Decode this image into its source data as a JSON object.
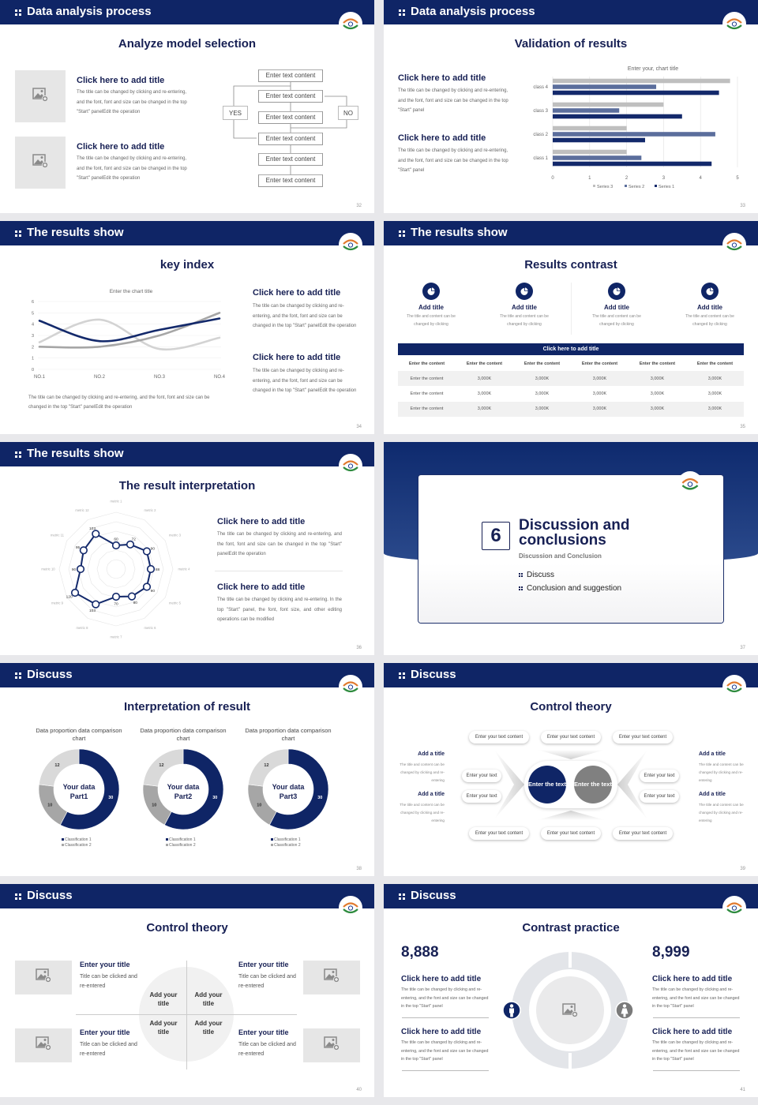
{
  "colors": {
    "navy": "#0f2566",
    "title": "#172054",
    "mid_gray": "#a6a6a6",
    "light_gray": "#d9d9d9"
  },
  "icons": {
    "image_placeholder": "image-add-icon",
    "logo": "emblem-logo",
    "feature": "pie-chart-icon",
    "male": "male-icon",
    "female": "female-icon"
  },
  "slides": [
    {
      "header": "Data analysis process",
      "subtitle": "Analyze model selection",
      "page": "32",
      "items": [
        {
          "title": "Click here to add title",
          "body": "The title can be changed by clicking and re-entering, and the font, font and size can be changed in the top \"Start\" panelEdit the operation"
        },
        {
          "title": "Click here to add title",
          "body": "The title can be changed by clicking and re-entering, and the font, font and size can be changed in the top \"Start\" panelEdit the operation"
        }
      ],
      "flow": {
        "boxes": [
          "Enter text content",
          "Enter text content",
          "Enter text content",
          "Enter text content",
          "Enter text content",
          "Enter text content"
        ],
        "yes": "YES",
        "no": "NO"
      }
    },
    {
      "header": "Data analysis process",
      "subtitle": "Validation of results",
      "page": "33",
      "items": [
        {
          "title": "Click here to add title",
          "body": "The title can be changed by clicking and re-entering, and the font, font and size can be changed in the top \"Start\" panel"
        },
        {
          "title": "Click here to add title",
          "body": "The title can be changed by clicking and re-entering, and the font, font and size can be changed in the top \"Start\" panel"
        }
      ]
    },
    {
      "header": "The results show",
      "subtitle": "key index",
      "page": "34",
      "caption": "The title can be changed by clicking and re-entering, and the font, font and size can be changed in the top \"Start\" panelEdit the operation",
      "items": [
        {
          "title": "Click here to add title",
          "body": "The title can be changed by clicking and re-entering, and the font, font and size can be changed in the top \"Start\" panelEdit the operation"
        },
        {
          "title": "Click here to add title",
          "body": "The title can be changed by clicking and re-entering, and the font, font and size can be changed in the top \"Start\" panelEdit the operation"
        }
      ]
    },
    {
      "header": "The results show",
      "subtitle": "Results contrast",
      "page": "35",
      "features": [
        {
          "title": "Add title",
          "body": "The title and content can be changed by clicking"
        },
        {
          "title": "Add title",
          "body": "The title and content can be changed by clicking"
        },
        {
          "title": "Add title",
          "body": "The title and content can be changed by clicking"
        },
        {
          "title": "Add title",
          "body": "The title and content can be changed by clicking"
        }
      ],
      "table": {
        "title": "Click here to add title",
        "header": [
          "Enter the content",
          "Enter the content",
          "Enter the content",
          "Enter the content",
          "Enter the content",
          "Enter the content"
        ],
        "rows": [
          [
            "Enter the content",
            "3,000K",
            "3,000K",
            "3,000K",
            "3,000K",
            "3,000K"
          ],
          [
            "Enter the content",
            "3,000K",
            "3,000K",
            "3,000K",
            "3,000K",
            "3,000K"
          ],
          [
            "Enter the content",
            "3,000K",
            "3,000K",
            "3,000K",
            "3,000K",
            "3,000K"
          ]
        ]
      }
    },
    {
      "header": "The results show",
      "subtitle": "The result interpretation",
      "page": "36",
      "items": [
        {
          "title": "Click here to add title",
          "body": "The title can be changed by clicking and re-entering, and the font, font and size can be changed in the top \"Start\" panelEdit the operation"
        },
        {
          "title": "Click here to add title",
          "body": "The title can be changed by clicking and re-entering. In the top \"Start\" panel, the font, font size, and other editing operations can be modified"
        }
      ]
    },
    {
      "number": "6",
      "title": "Discussion and conclusions",
      "subtitle": "Discussion and Conclusion",
      "bullets": [
        "Discuss",
        "Conclusion and suggestion"
      ],
      "page": "37"
    },
    {
      "header": "Discuss",
      "subtitle": "Interpretation of result",
      "page": "38"
    },
    {
      "header": "Discuss",
      "subtitle": "Control theory",
      "page": "39",
      "top_pills": [
        "Enter your text content",
        "Enter your text content",
        "Enter your text content"
      ],
      "bottom_pills": [
        "Enter your text content",
        "Enter your text content",
        "Enter your text content"
      ],
      "left_pills": [
        "Enter your text",
        "Enter your text"
      ],
      "right_pills": [
        "Enter your text",
        "Enter your text"
      ],
      "center": [
        "Enter the text",
        "Enter the text"
      ],
      "side": [
        {
          "title": "Add a title",
          "body": "The title and content can be changed by clicking and re-entering"
        },
        {
          "title": "Add a title",
          "body": "The title and content can be changed by clicking and re-entering"
        },
        {
          "title": "Add a title",
          "body": "The title and content can be changed by clicking and re-entering"
        },
        {
          "title": "Add a title",
          "body": "The title and content can be changed by clicking and re-entering"
        }
      ]
    },
    {
      "header": "Discuss",
      "subtitle": "Control theory",
      "page": "40",
      "items": [
        {
          "title": "Enter your title",
          "body": "Title can be clicked and re-entered"
        },
        {
          "title": "Enter your title",
          "body": "Title can be clicked and re-entered"
        },
        {
          "title": "Enter your title",
          "body": "Title can be clicked and re-entered"
        },
        {
          "title": "Enter your title",
          "body": "Title can be clicked and re-entered"
        }
      ],
      "quadrants": [
        "Add your title",
        "Add your title",
        "Add your title",
        "Add your title"
      ]
    },
    {
      "header": "Discuss",
      "subtitle": "Contrast practice",
      "page": "41",
      "stats": [
        "8,888",
        "8,999"
      ],
      "items": [
        {
          "title": "Click here to add title",
          "body": "The title can be changed by clicking and re-entering, and the font and size can be changed in the top \"Start\" panel"
        },
        {
          "title": "Click here to add title",
          "body": "The title can be changed by clicking and re-entering, and the font and size can be changed in the top \"Start\" panel"
        },
        {
          "title": "Click here to add title",
          "body": "The title can be changed by clicking and re-entering, and the font and size can be changed in the top \"Start\" panel"
        },
        {
          "title": "Click here to add title",
          "body": "The title can be changed by clicking and re-entering, and the font and size can be changed in the top \"Start\" panel"
        }
      ]
    }
  ],
  "chart_data": [
    {
      "type": "bar",
      "orientation": "horizontal",
      "title": "Enter your, chart title",
      "categories": [
        "class 1",
        "class 2",
        "class 3",
        "class 4"
      ],
      "series": [
        {
          "name": "Series 1",
          "values": [
            4.3,
            2.5,
            3.5,
            4.5
          ],
          "color": "#13296b"
        },
        {
          "name": "Series 2",
          "values": [
            2.4,
            4.4,
            1.8,
            2.8
          ],
          "color": "#5b6e9c"
        },
        {
          "name": "Series 3",
          "values": [
            2,
            2,
            3,
            4.8
          ],
          "color": "#bfbfbf"
        }
      ],
      "xlim": [
        0,
        5
      ],
      "xticks": [
        "0",
        "1",
        "2",
        "3",
        "4",
        "5"
      ],
      "grid": true,
      "legend": "bottom"
    },
    {
      "type": "line",
      "title": "Enter the chart title",
      "smooth": true,
      "categories": [
        "NO.1",
        "NO.2",
        "NO.3",
        "NO.4"
      ],
      "series": [
        {
          "values": [
            4.3,
            2.5,
            3.5,
            4.5
          ],
          "color": "#13296b"
        },
        {
          "values": [
            2.4,
            4.4,
            1.8,
            2.8
          ],
          "color": "#d3d3d3"
        },
        {
          "values": [
            2,
            2,
            3,
            5
          ],
          "color": "#a6a6a6"
        }
      ],
      "ylim": [
        0,
        6
      ],
      "yticks": [
        "0",
        "1",
        "2",
        "3",
        "4",
        "5",
        "6"
      ],
      "grid": true
    },
    {
      "type": "radar",
      "categories": [
        "metric 1",
        "metric 2",
        "metric 3",
        "metric 4",
        "metric 5",
        "metric 6",
        "metric 7",
        "metric 8",
        "metric 9",
        "metric 10",
        "metric 11",
        "metric 12"
      ],
      "values": [
        60,
        72,
        90,
        88,
        90,
        80,
        70,
        103,
        120,
        90,
        95,
        103
      ],
      "color": "#13296b"
    },
    {
      "type": "pie",
      "donut": true,
      "title": "Data proportion data comparison chart",
      "center_label": [
        "Your data",
        "Part1"
      ],
      "values": [
        30,
        10,
        12
      ],
      "labels": [
        "30",
        "10",
        "12"
      ],
      "colors": [
        "#0f2566",
        "#a6a6a6",
        "#d9d9d9"
      ],
      "legend": [
        "Classification 1",
        "Classification 2"
      ]
    },
    {
      "type": "pie",
      "donut": true,
      "title": "Data proportion data comparison chart",
      "center_label": [
        "Your data",
        "Part2"
      ],
      "values": [
        30,
        10,
        12
      ],
      "labels": [
        "30",
        "10",
        "12"
      ],
      "colors": [
        "#0f2566",
        "#a6a6a6",
        "#d9d9d9"
      ],
      "legend": [
        "Classification 1",
        "Classification 2"
      ]
    },
    {
      "type": "pie",
      "donut": true,
      "title": "Data proportion data comparison chart",
      "center_label": [
        "Your data",
        "Part3"
      ],
      "values": [
        30,
        10,
        12
      ],
      "labels": [
        "30",
        "10",
        "12"
      ],
      "colors": [
        "#0f2566",
        "#a6a6a6",
        "#d9d9d9"
      ],
      "legend": [
        "Classification 1",
        "Classification 2"
      ]
    }
  ]
}
